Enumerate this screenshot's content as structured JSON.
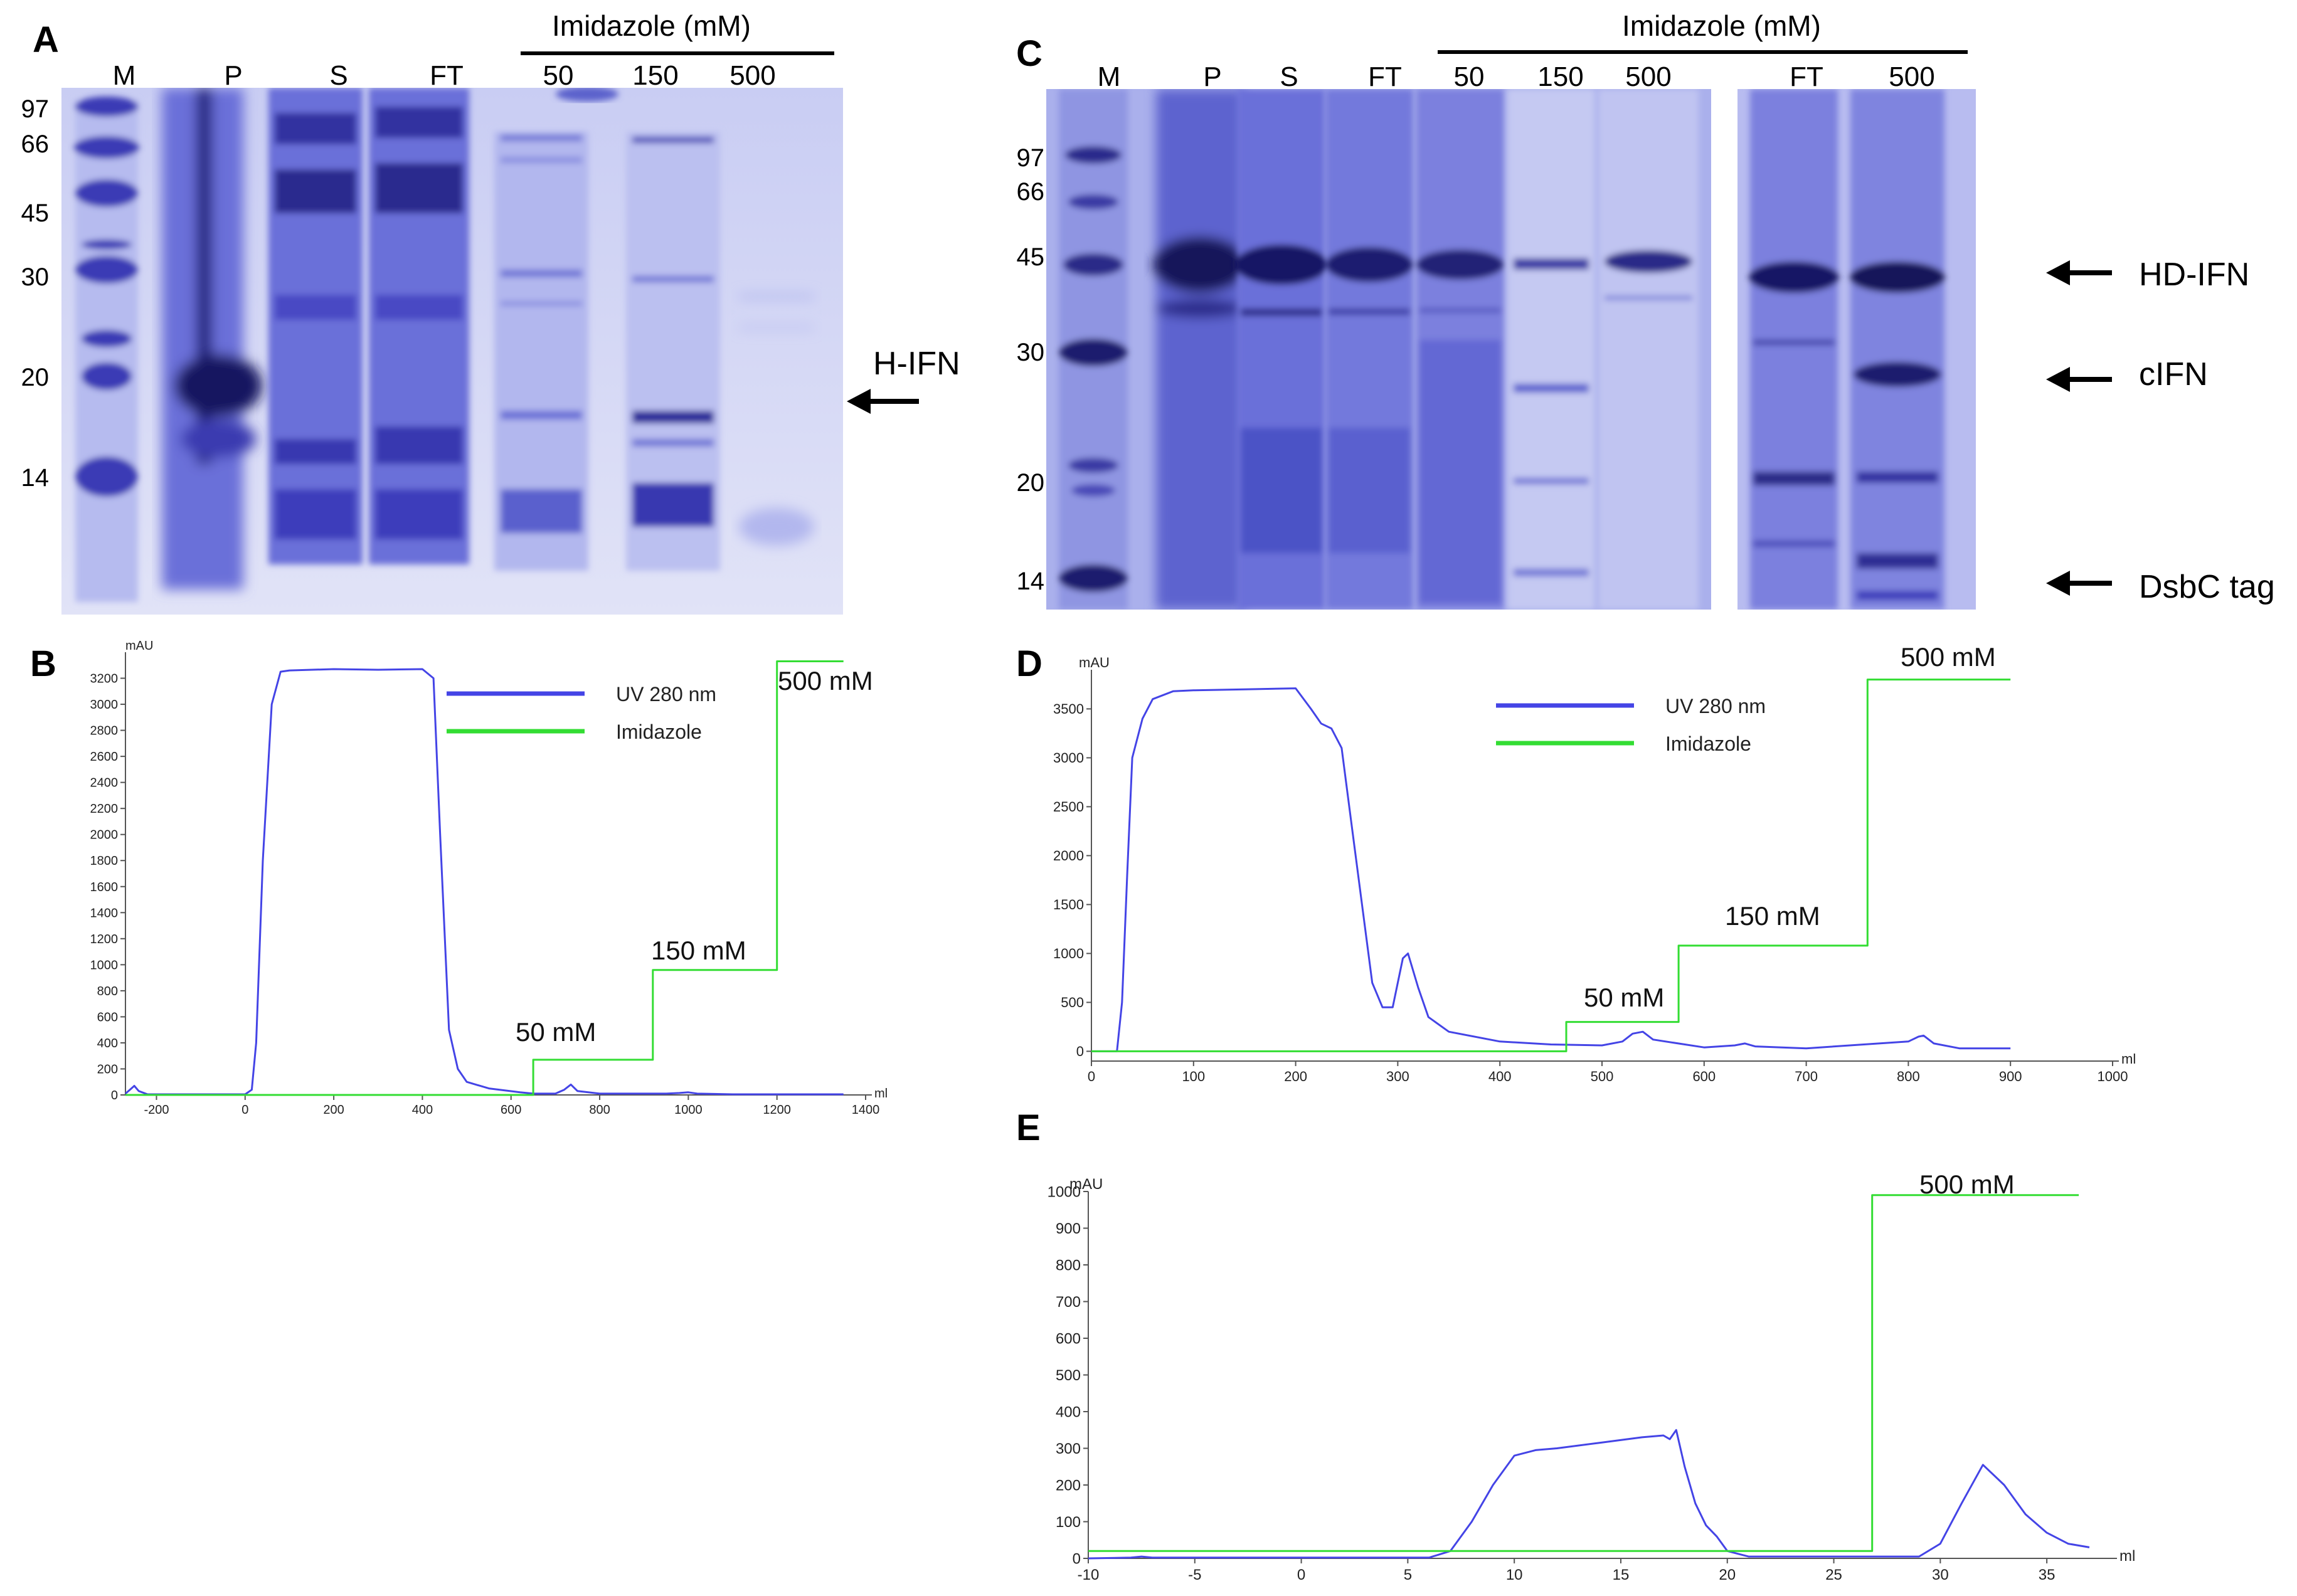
{
  "colors": {
    "uv_trace": "#4444e6",
    "imidazole_trace": "#33dd33",
    "gel_band": "#2e2ea8",
    "gel_bg": "#dfe1f6"
  },
  "panelA": {
    "letter": "A",
    "header": "Imidazole (mM)",
    "lanes": [
      "M",
      "P",
      "S",
      "FT",
      "50",
      "150",
      "500"
    ],
    "markers": [
      "97",
      "66",
      "45",
      "30",
      "20",
      "14"
    ],
    "arrow_label": "H-IFN"
  },
  "panelC": {
    "letter": "C",
    "header": "Imidazole (mM)",
    "lanes": [
      "M",
      "P",
      "S",
      "FT",
      "50",
      "150",
      "500"
    ],
    "lanes_right": [
      "FT",
      "500"
    ],
    "markers": [
      "97",
      "66",
      "45",
      "30",
      "20",
      "14"
    ],
    "arrow_labels": [
      "HD-IFN",
      "cIFN",
      "DsbC tag"
    ]
  },
  "chart_data": [
    {
      "panel": "B",
      "type": "line",
      "ylabel": "mAU",
      "xlabel": "ml",
      "xlim": [
        -270,
        1400
      ],
      "ylim": [
        0,
        3400
      ],
      "xticks": [
        -200,
        0,
        200,
        400,
        600,
        800,
        1000,
        1200,
        1400
      ],
      "yticks": [
        0,
        200,
        400,
        600,
        800,
        1000,
        1200,
        1400,
        1600,
        1800,
        2000,
        2200,
        2400,
        2600,
        2800,
        3000,
        3200
      ],
      "legend": [
        "UV 280 nm",
        "Imidazole"
      ],
      "annotations": [
        "50 mM",
        "150 mM",
        "500 mM"
      ],
      "series": [
        {
          "name": "UV 280 nm",
          "x": [
            -270,
            -260,
            -250,
            -240,
            -220,
            0,
            15,
            25,
            40,
            60,
            80,
            100,
            200,
            300,
            400,
            425,
            440,
            460,
            480,
            500,
            550,
            620,
            650,
            700,
            720,
            735,
            750,
            800,
            950,
            980,
            1000,
            1020,
            1100,
            1350
          ],
          "y": [
            10,
            40,
            70,
            30,
            5,
            5,
            40,
            400,
            1800,
            3000,
            3250,
            3260,
            3270,
            3265,
            3270,
            3200,
            2000,
            500,
            200,
            100,
            50,
            20,
            10,
            10,
            40,
            80,
            30,
            10,
            10,
            15,
            20,
            10,
            5,
            5
          ]
        },
        {
          "name": "Imidazole",
          "x": [
            -270,
            650,
            650,
            920,
            920,
            1200,
            1200,
            1350
          ],
          "y": [
            0,
            0,
            270,
            270,
            960,
            960,
            3330,
            3330
          ]
        }
      ]
    },
    {
      "panel": "D",
      "type": "line",
      "ylabel": "mAU",
      "xlabel": "ml",
      "xlim": [
        0,
        1000
      ],
      "ylim": [
        -100,
        3900
      ],
      "xticks": [
        0,
        100,
        200,
        300,
        400,
        500,
        600,
        700,
        800,
        900,
        1000
      ],
      "yticks": [
        0,
        500,
        1000,
        1500,
        2000,
        2500,
        3000,
        3500
      ],
      "legend": [
        "UV 280 nm",
        "Imidazole"
      ],
      "annotations": [
        "50 mM",
        "150 mM",
        "500 mM"
      ],
      "series": [
        {
          "name": "UV 280 nm",
          "x": [
            0,
            25,
            30,
            35,
            40,
            50,
            60,
            80,
            100,
            150,
            200,
            215,
            225,
            235,
            245,
            255,
            265,
            275,
            285,
            295,
            305,
            310,
            320,
            330,
            350,
            400,
            450,
            500,
            520,
            530,
            540,
            550,
            600,
            630,
            640,
            650,
            700,
            800,
            810,
            815,
            825,
            850,
            900
          ],
          "y": [
            0,
            0,
            500,
            1800,
            3000,
            3400,
            3600,
            3680,
            3690,
            3700,
            3710,
            3500,
            3350,
            3300,
            3100,
            2300,
            1500,
            700,
            450,
            450,
            950,
            1000,
            650,
            350,
            200,
            100,
            70,
            60,
            100,
            180,
            200,
            120,
            40,
            60,
            80,
            50,
            30,
            100,
            150,
            160,
            80,
            30,
            30
          ]
        },
        {
          "name": "Imidazole",
          "x": [
            0,
            465,
            465,
            575,
            575,
            760,
            760,
            900
          ],
          "y": [
            0,
            0,
            300,
            300,
            1080,
            1080,
            3800,
            3800
          ]
        }
      ]
    },
    {
      "panel": "E",
      "type": "line",
      "ylabel": "mAU",
      "xlabel": "ml",
      "xlim": [
        -10,
        38
      ],
      "ylim": [
        0,
        1000
      ],
      "xticks": [
        -10,
        -5,
        0,
        5,
        10,
        15,
        20,
        25,
        30,
        35
      ],
      "yticks": [
        0,
        100,
        200,
        300,
        400,
        500,
        600,
        700,
        800,
        900,
        1000
      ],
      "annotations": [
        "500 mM"
      ],
      "series": [
        {
          "name": "UV 280 nm",
          "x": [
            -10,
            -8,
            -7.5,
            -7,
            6,
            7,
            8,
            9,
            10,
            11,
            12,
            14,
            16,
            17,
            17.3,
            17.6,
            18,
            18.5,
            19,
            19.5,
            20,
            21,
            29,
            30,
            31,
            32,
            33,
            34,
            35,
            36,
            37
          ],
          "y": [
            0,
            2,
            5,
            2,
            2,
            20,
            100,
            200,
            280,
            295,
            300,
            315,
            330,
            335,
            325,
            350,
            250,
            150,
            90,
            60,
            20,
            5,
            5,
            40,
            150,
            255,
            200,
            120,
            70,
            40,
            30
          ]
        },
        {
          "name": "Imidazole",
          "x": [
            -10,
            26.8,
            26.8,
            36.5
          ],
          "y": [
            20,
            20,
            990,
            990
          ]
        }
      ]
    }
  ]
}
